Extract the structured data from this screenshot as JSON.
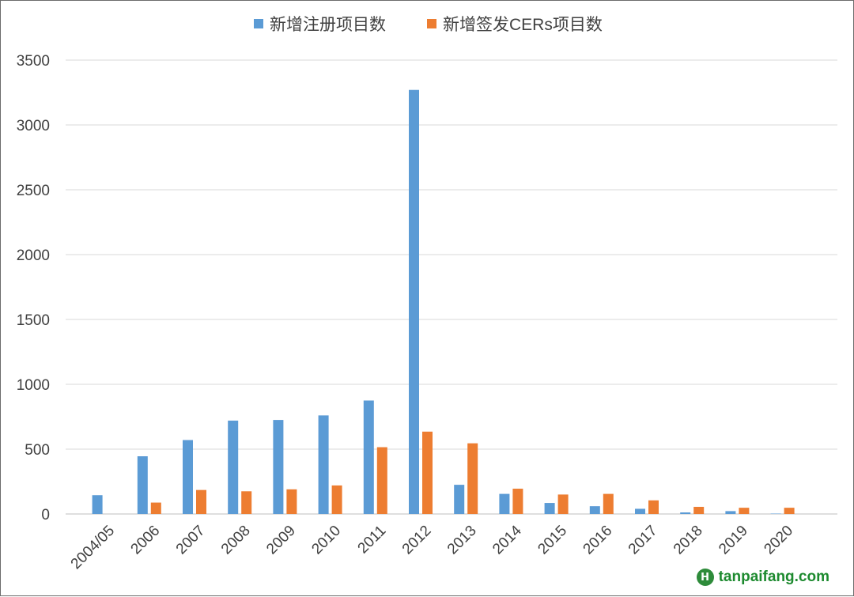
{
  "chart_data": {
    "type": "bar",
    "categories": [
      "2004/05",
      "2006",
      "2007",
      "2008",
      "2009",
      "2010",
      "2011",
      "2012",
      "2013",
      "2014",
      "2015",
      "2016",
      "2017",
      "2018",
      "2019",
      "2020"
    ],
    "series": [
      {
        "name": "新增注册项目数",
        "color": "#5b9bd5",
        "values": [
          145,
          445,
          570,
          720,
          725,
          760,
          875,
          3270,
          225,
          155,
          85,
          60,
          40,
          12,
          22,
          3
        ]
      },
      {
        "name": "新增签发CERs项目数",
        "color": "#ed7d31",
        "values": [
          0,
          88,
          185,
          175,
          190,
          220,
          515,
          635,
          545,
          195,
          150,
          155,
          105,
          55,
          48,
          48
        ]
      }
    ],
    "ylim": [
      0,
      3500
    ],
    "yticks": [
      0,
      500,
      1000,
      1500,
      2000,
      2500,
      3000,
      3500
    ],
    "grid": true,
    "legend_position": "top-center"
  },
  "watermark": {
    "text": "tanpaifang.com",
    "logo_glyph": "H"
  }
}
